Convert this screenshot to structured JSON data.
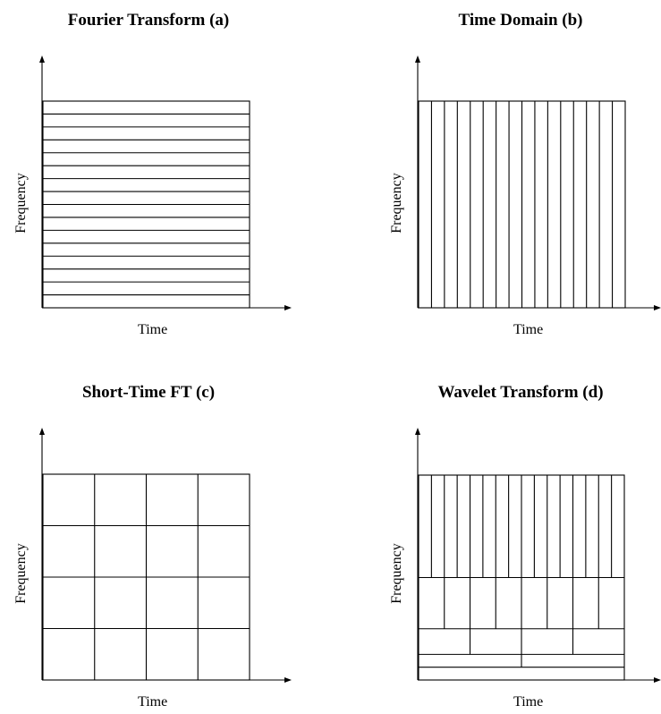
{
  "panels": [
    {
      "id": "a",
      "title": "Fourier Transform (a)",
      "xlabel": "Time",
      "ylabel": "Frequency",
      "kind": "horizontal_strips",
      "divisions": 16
    },
    {
      "id": "b",
      "title": "Time Domain (b)",
      "xlabel": "Time",
      "ylabel": "Frequency",
      "kind": "vertical_strips",
      "divisions": 16
    },
    {
      "id": "c",
      "title": "Short-Time FT (c)",
      "xlabel": "Time",
      "ylabel": "Frequency",
      "kind": "uniform_grid",
      "columns": 4,
      "rows": 4
    },
    {
      "id": "d",
      "title": "Wavelet Transform (d)",
      "xlabel": "Time",
      "ylabel": "Frequency",
      "kind": "dyadic_tiling",
      "levels": [
        {
          "cells": 16,
          "height_fraction": 0.5
        },
        {
          "cells": 8,
          "height_fraction": 0.25
        },
        {
          "cells": 4,
          "height_fraction": 0.125
        },
        {
          "cells": 2,
          "height_fraction": 0.0625
        },
        {
          "cells": 1,
          "height_fraction": 0.0625
        }
      ]
    }
  ]
}
